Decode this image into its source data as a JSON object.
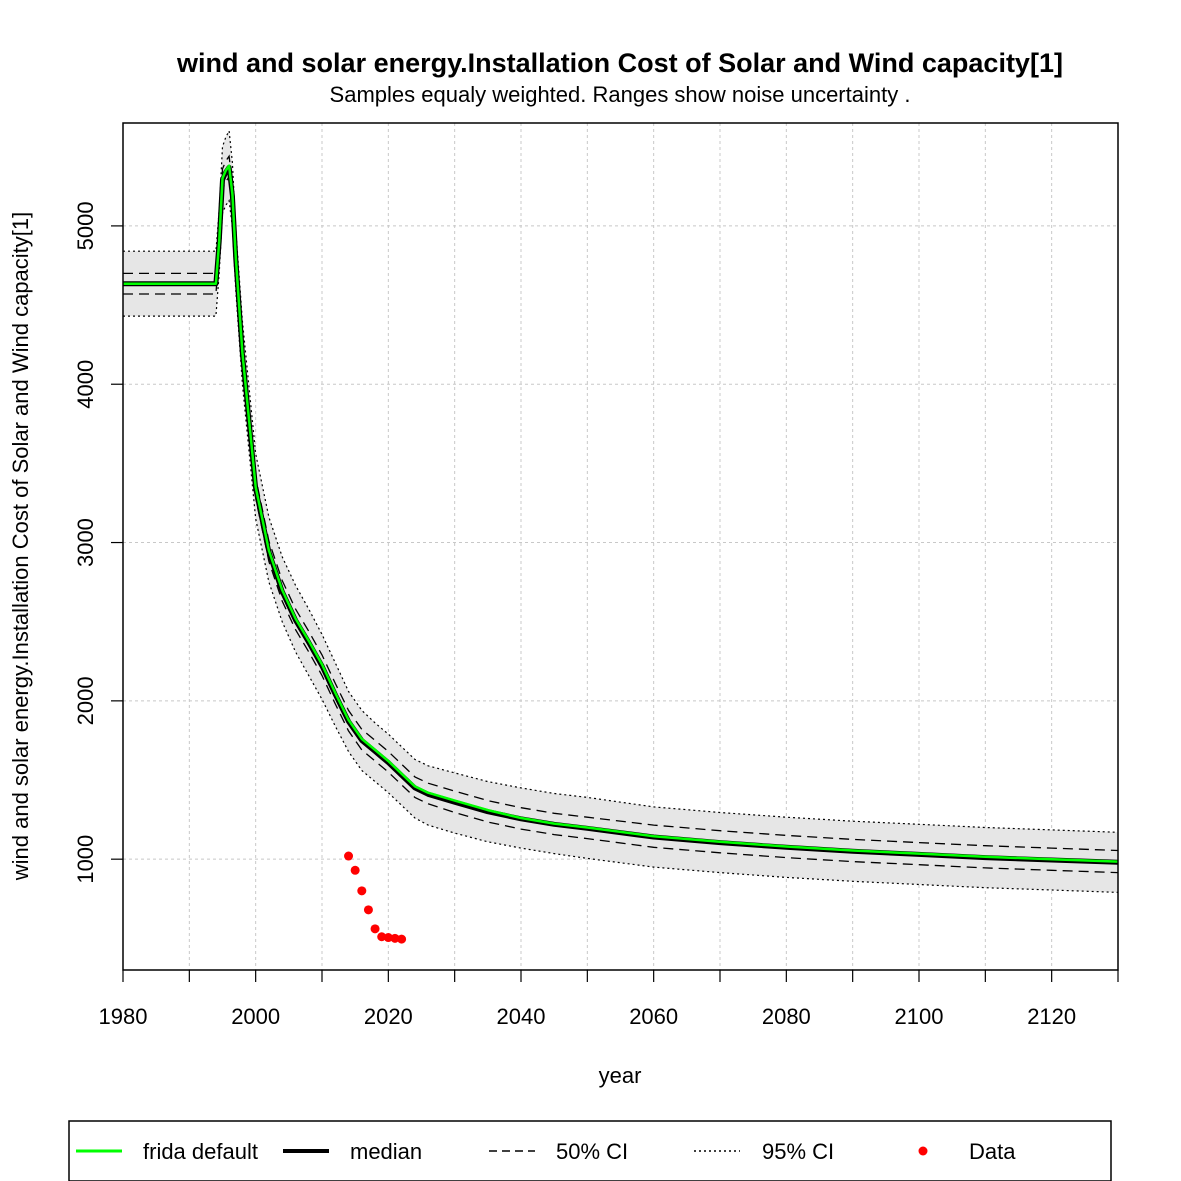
{
  "chart_data": {
    "type": "line",
    "title": "wind and solar energy.Installation Cost of Solar and Wind capacity[1]",
    "subtitle": "Samples equaly weighted. Ranges show  noise uncertainty .",
    "xlabel": "year",
    "ylabel": "wind and solar energy.Installation Cost of Solar and Wind capacity[1]",
    "xlim": [
      1980,
      2130
    ],
    "ylim": [
      300,
      5650
    ],
    "x_ticks": [
      1980,
      2000,
      2020,
      2040,
      2060,
      2080,
      2100,
      2120
    ],
    "x_minor_ticks": [
      1990,
      2010,
      2030,
      2050,
      2070,
      2090,
      2110,
      2130
    ],
    "x_tick_labels": [
      "1980",
      "2000",
      "2020",
      "2040",
      "2060",
      "2080",
      "2100",
      "2120"
    ],
    "y_ticks": [
      1000,
      2000,
      3000,
      4000,
      5000
    ],
    "y_tick_labels": [
      "1000",
      "2000",
      "3000",
      "4000",
      "5000"
    ],
    "grid": true,
    "x": [
      1980,
      1994,
      1994.5,
      1995,
      1995.5,
      1996,
      1996.5,
      1997,
      1998,
      2000,
      2002,
      2004,
      2006,
      2008,
      2010,
      2012,
      2014,
      2016,
      2018,
      2020,
      2022,
      2024,
      2026,
      2030,
      2035,
      2040,
      2045,
      2050,
      2060,
      2070,
      2080,
      2090,
      2100,
      2110,
      2120,
      2130
    ],
    "series": [
      {
        "name": "frida default",
        "color": "#00ff00",
        "values": [
          4635,
          4635,
          4900,
          5300,
          5350,
          5380,
          5200,
          4800,
          4200,
          3350,
          2950,
          2700,
          2520,
          2380,
          2230,
          2050,
          1880,
          1760,
          1690,
          1620,
          1540,
          1460,
          1420,
          1370,
          1310,
          1260,
          1225,
          1200,
          1145,
          1110,
          1080,
          1055,
          1035,
          1015,
          1000,
          985
        ]
      },
      {
        "name": "median",
        "color": "#000000",
        "values": [
          4635,
          4635,
          4900,
          5290,
          5340,
          5370,
          5190,
          4790,
          4190,
          3340,
          2940,
          2690,
          2510,
          2370,
          2220,
          2040,
          1870,
          1750,
          1680,
          1610,
          1530,
          1450,
          1410,
          1360,
          1300,
          1255,
          1220,
          1195,
          1140,
          1105,
          1075,
          1050,
          1030,
          1010,
          995,
          980
        ]
      },
      {
        "name": "50% CI upper",
        "values": [
          4700,
          4700,
          4960,
          5360,
          5410,
          5440,
          5260,
          4850,
          4260,
          3410,
          3010,
          2760,
          2580,
          2440,
          2290,
          2110,
          1940,
          1820,
          1750,
          1680,
          1600,
          1520,
          1480,
          1430,
          1370,
          1325,
          1290,
          1265,
          1215,
          1180,
          1150,
          1125,
          1105,
          1085,
          1070,
          1055
        ]
      },
      {
        "name": "50% CI lower",
        "values": [
          4570,
          4570,
          4840,
          5230,
          5280,
          5310,
          5130,
          4730,
          4130,
          3280,
          2880,
          2630,
          2450,
          2310,
          2160,
          1980,
          1810,
          1690,
          1620,
          1550,
          1470,
          1390,
          1350,
          1295,
          1235,
          1190,
          1155,
          1130,
          1075,
          1040,
          1010,
          985,
          965,
          945,
          930,
          915
        ]
      },
      {
        "name": "95% CI upper",
        "values": [
          4840,
          4840,
          5100,
          5500,
          5560,
          5600,
          5400,
          4980,
          4400,
          3560,
          3160,
          2910,
          2730,
          2580,
          2420,
          2240,
          2060,
          1940,
          1860,
          1790,
          1710,
          1630,
          1590,
          1545,
          1490,
          1450,
          1415,
          1390,
          1330,
          1295,
          1265,
          1240,
          1220,
          1200,
          1185,
          1170
        ]
      },
      {
        "name": "95% CI lower",
        "values": [
          4430,
          4430,
          4700,
          5080,
          5130,
          5160,
          4990,
          4590,
          4000,
          3150,
          2750,
          2500,
          2310,
          2160,
          2010,
          1840,
          1680,
          1560,
          1490,
          1420,
          1340,
          1260,
          1215,
          1165,
          1110,
          1070,
          1035,
          1005,
          950,
          915,
          885,
          860,
          840,
          820,
          805,
          790
        ]
      }
    ],
    "data_points": {
      "name": "Data",
      "color": "#ff0000",
      "x": [
        2014,
        2015,
        2016,
        2017,
        2018,
        2019,
        2020,
        2021,
        2022
      ],
      "y": [
        1020,
        930,
        800,
        680,
        560,
        510,
        505,
        500,
        495
      ]
    },
    "legend": {
      "position": "bottom",
      "items": [
        {
          "label": "frida default",
          "style": "green-solid"
        },
        {
          "label": "median",
          "style": "black-thick"
        },
        {
          "label": "50% CI",
          "style": "dashed"
        },
        {
          "label": "95% CI",
          "style": "dotted"
        },
        {
          "label": "Data",
          "style": "red-point"
        }
      ]
    }
  }
}
